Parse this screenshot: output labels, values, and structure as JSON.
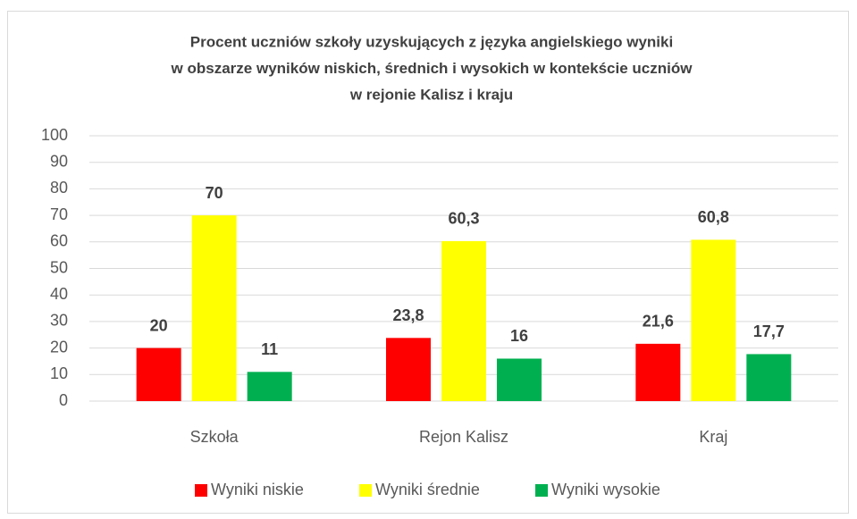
{
  "chart_data": {
    "type": "bar",
    "title": [
      "Procent uczniów szkoły uzyskujących z języka angielskiego wyniki",
      "w obszarze wyników niskich, średnich i wysokich w kontekście uczniów",
      "w rejonie Kalisz i kraju"
    ],
    "categories": [
      "Szkoła",
      "Rejon Kalisz",
      "Kraj"
    ],
    "series": [
      {
        "name": "Wyniki niskie",
        "color": "#ff0000",
        "values": [
          20,
          23.8,
          21.6
        ],
        "value_labels": [
          "20",
          "23,8",
          "21,6"
        ]
      },
      {
        "name": "Wyniki średnie",
        "color": "#ffff00",
        "values": [
          70,
          60.3,
          60.8
        ],
        "value_labels": [
          "70",
          "60,3",
          "60,8"
        ]
      },
      {
        "name": "Wyniki wysokie",
        "color": "#00b050",
        "values": [
          11,
          16,
          17.7
        ],
        "value_labels": [
          "11",
          "16",
          "17,7"
        ]
      }
    ],
    "ylim": [
      0,
      100
    ],
    "yticks": [
      0,
      10,
      20,
      30,
      40,
      50,
      60,
      70,
      80,
      90,
      100
    ],
    "grid": true,
    "legend": "bottom"
  }
}
